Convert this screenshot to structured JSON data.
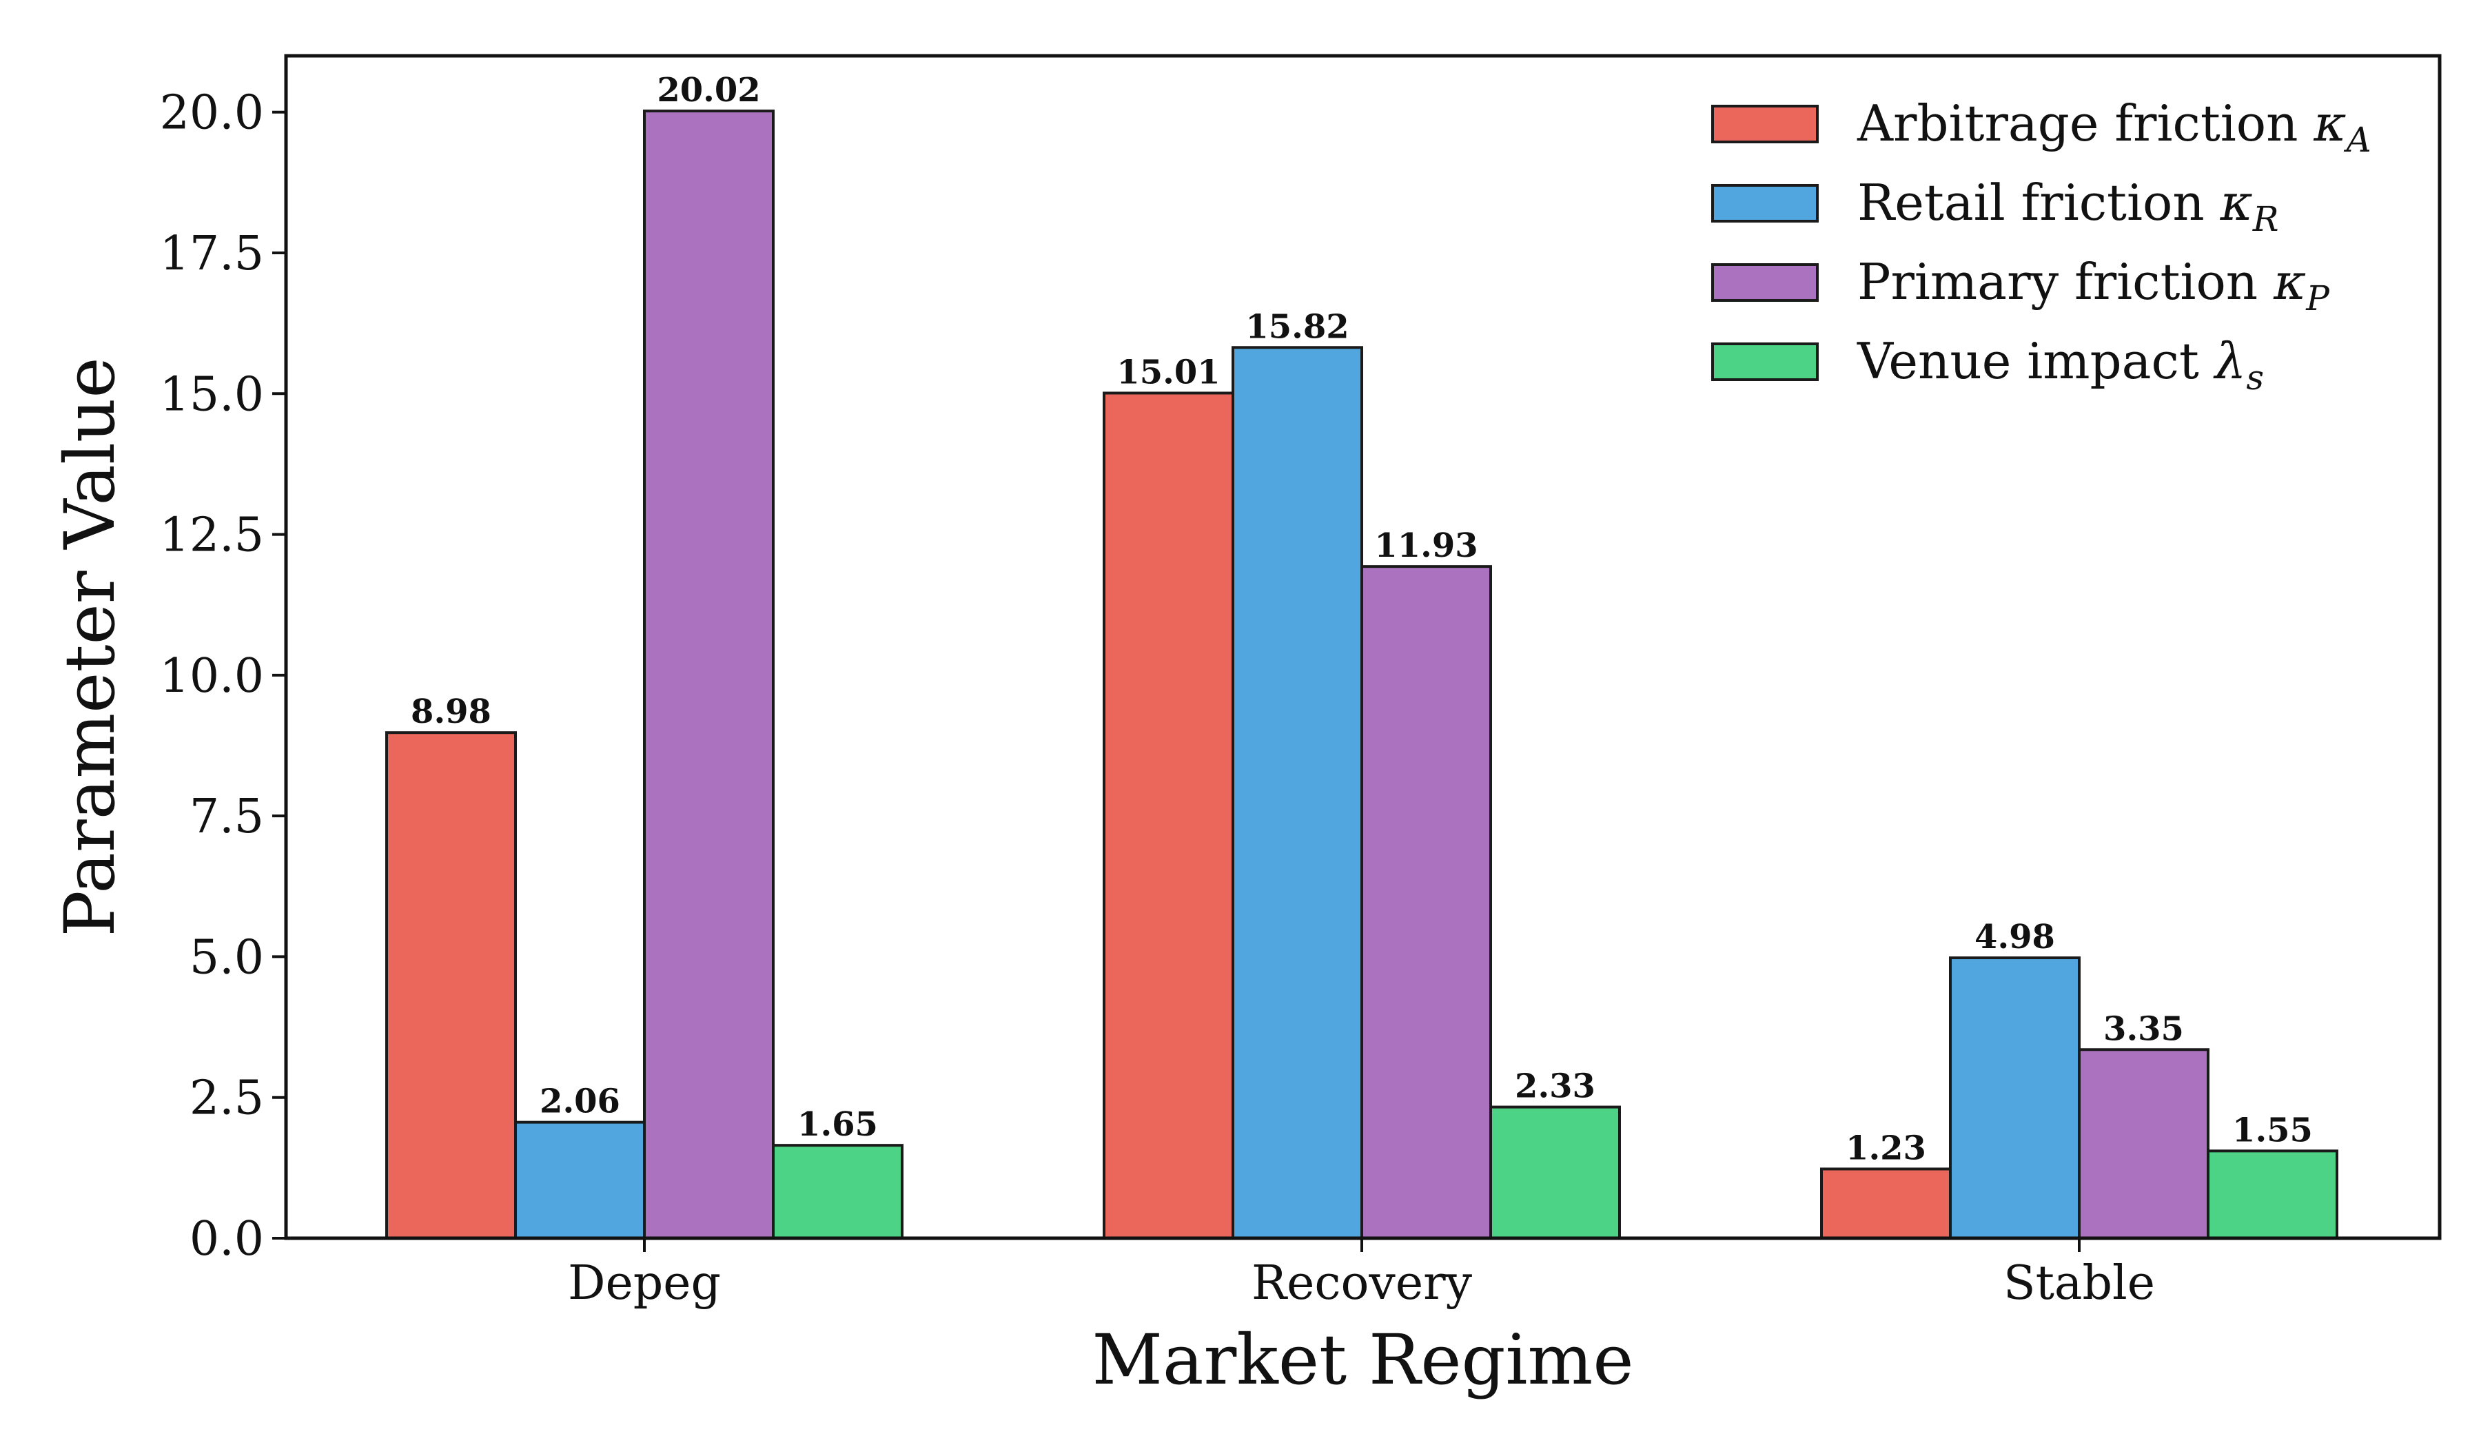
{
  "chart_data": {
    "type": "bar",
    "categories": [
      "Depeg",
      "Recovery",
      "Stable"
    ],
    "series": [
      {
        "name": "Arbitrage friction",
        "symbol": "κ",
        "subscript": "A",
        "color": "#EC675B",
        "values": [
          8.98,
          15.01,
          1.23
        ],
        "labels": [
          "8.98",
          "15.01",
          "1.23"
        ]
      },
      {
        "name": "Retail friction",
        "symbol": "κ",
        "subscript": "R",
        "color": "#52A6DF",
        "values": [
          2.06,
          15.82,
          4.98
        ],
        "labels": [
          "2.06",
          "15.82",
          "4.98"
        ]
      },
      {
        "name": "Primary friction",
        "symbol": "κ",
        "subscript": "P",
        "color": "#AB72C0",
        "values": [
          20.02,
          11.93,
          3.35
        ],
        "labels": [
          "20.02",
          "11.93",
          "3.35"
        ]
      },
      {
        "name": "Venue impact",
        "symbol": "λ",
        "subscript": "s",
        "color": "#4CD385",
        "values": [
          1.65,
          2.33,
          1.55
        ],
        "labels": [
          "1.65",
          "2.33",
          "1.55"
        ]
      }
    ],
    "xlabel": "Market Regime",
    "ylabel": "Parameter Value",
    "ylim": [
      0,
      21
    ],
    "yticks": [
      "0.0",
      "2.5",
      "5.0",
      "7.5",
      "10.0",
      "12.5",
      "15.0",
      "17.5",
      "20.0"
    ],
    "grid": false,
    "legend_position": "top-right"
  }
}
